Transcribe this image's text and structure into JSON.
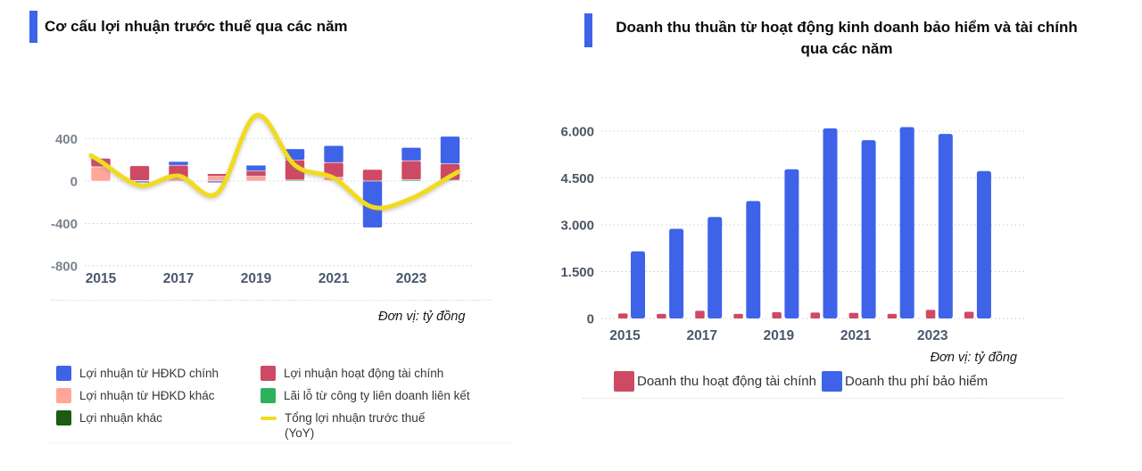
{
  "chart_data": [
    {
      "id": "profit-structure",
      "type": "bar",
      "variant": "stacked-bars-with-line",
      "title": "Cơ cấu lợi nhuận trước thuế qua các năm",
      "unit_note": "Đơn vị: tỷ đồng",
      "accent_color": "#3E63E9",
      "categories": [
        "2015",
        "2016",
        "2017",
        "2018",
        "2019",
        "2020",
        "2021",
        "2022",
        "2023",
        "2024"
      ],
      "x_tick_labels": [
        "2015",
        "2017",
        "2019",
        "2021",
        "2023"
      ],
      "y_ticks": [
        {
          "value": 400,
          "label": "400"
        },
        {
          "value": 0,
          "label": "0"
        },
        {
          "value": -400,
          "label": "-400"
        },
        {
          "value": -800,
          "label": "-800"
        }
      ],
      "ylim": [
        -900,
        700
      ],
      "grid": true,
      "bar_series": [
        {
          "name": "Lãi lỗ từ công ty liên doanh liên kết",
          "color": "#2EB05C",
          "values": [
            0,
            0,
            0,
            0,
            0,
            10,
            5,
            0,
            12,
            8
          ]
        },
        {
          "name": "Lợi nhuận khác",
          "color": "#1A5C10",
          "values": [
            0,
            0,
            0,
            0,
            0,
            0,
            0,
            0,
            0,
            0
          ]
        },
        {
          "name": "Lợi nhuận từ HĐKD khác",
          "color": "#FFA698",
          "values": [
            135,
            5,
            20,
            45,
            45,
            0,
            30,
            0,
            0,
            0
          ]
        },
        {
          "name": "Lợi nhuận hoạt động tài chính",
          "color": "#CE4A64",
          "values": [
            80,
            140,
            130,
            25,
            50,
            190,
            140,
            110,
            180,
            155
          ]
        },
        {
          "name": "Lợi nhuận từ HĐKD chính",
          "color": "#3E63E9",
          "values": [
            0,
            -15,
            35,
            -15,
            55,
            105,
            160,
            -440,
            125,
            260
          ]
        }
      ],
      "line_series": {
        "name": "Tổng lợi nhuận trước thuế (YoY)",
        "color": "#F2DB1E",
        "values": [
          185,
          -40,
          50,
          -115,
          620,
          150,
          30,
          -245,
          -165,
          45
        ]
      },
      "legend_columns": [
        [
          {
            "label": "Lợi nhuận từ HĐKD chính",
            "color": "#3E63E9",
            "marker": "box"
          },
          {
            "label": "Lợi nhuận từ HĐKD khác",
            "color": "#FFA698",
            "marker": "box"
          },
          {
            "label": "Lợi nhuận khác",
            "color": "#1A5C10",
            "marker": "box"
          }
        ],
        [
          {
            "label": "Lợi nhuận hoạt động tài chính",
            "color": "#CE4A64",
            "marker": "box"
          },
          {
            "label": "Lãi lỗ từ công ty liên doanh liên kết",
            "color": "#2EB05C",
            "marker": "box"
          },
          {
            "label": "Tổng lợi nhuận trước thuế",
            "label2": "(YoY)",
            "color": "#F2DB1E",
            "marker": "line"
          }
        ]
      ]
    },
    {
      "id": "insurance-finance-revenue",
      "type": "bar",
      "variant": "grouped",
      "title": "Doanh thu thuần từ hoạt động kinh doanh bảo hiểm và tài chính qua các năm",
      "title_lines": [
        "Doanh thu thuần từ hoạt động kinh doanh bảo hiểm và tài chính",
        "qua các năm"
      ],
      "unit_note": "Đơn vị: tỷ đồng",
      "accent_color": "#3E63E9",
      "categories": [
        "2015",
        "2016",
        "2017",
        "2018",
        "2019",
        "2020",
        "2021",
        "2022",
        "2023",
        "2024"
      ],
      "x_tick_labels": [
        "2015",
        "2017",
        "2019",
        "2021",
        "2023"
      ],
      "y_ticks": [
        {
          "value": 6000,
          "label": "6.000"
        },
        {
          "value": 4500,
          "label": "4.500"
        },
        {
          "value": 3000,
          "label": "3.000"
        },
        {
          "value": 1500,
          "label": "1.500"
        },
        {
          "value": 0,
          "label": "0"
        }
      ],
      "ylim": [
        0,
        6500
      ],
      "grid": true,
      "series": [
        {
          "name": "Doanh thu hoạt động tài chính",
          "color": "#CE4A64",
          "values": [
            160,
            145,
            245,
            145,
            200,
            190,
            180,
            145,
            275,
            215
          ]
        },
        {
          "name": "Doanh thu phí bảo hiểm",
          "color": "#3E63E9",
          "values": [
            2150,
            2870,
            3250,
            3760,
            4780,
            6090,
            5710,
            6130,
            5910,
            4720
          ]
        }
      ],
      "legend": [
        {
          "label": "Doanh thu hoạt động tài chính",
          "color": "#CE4A64"
        },
        {
          "label": "Doanh thu phí bảo hiểm",
          "color": "#3E63E9"
        }
      ]
    }
  ]
}
